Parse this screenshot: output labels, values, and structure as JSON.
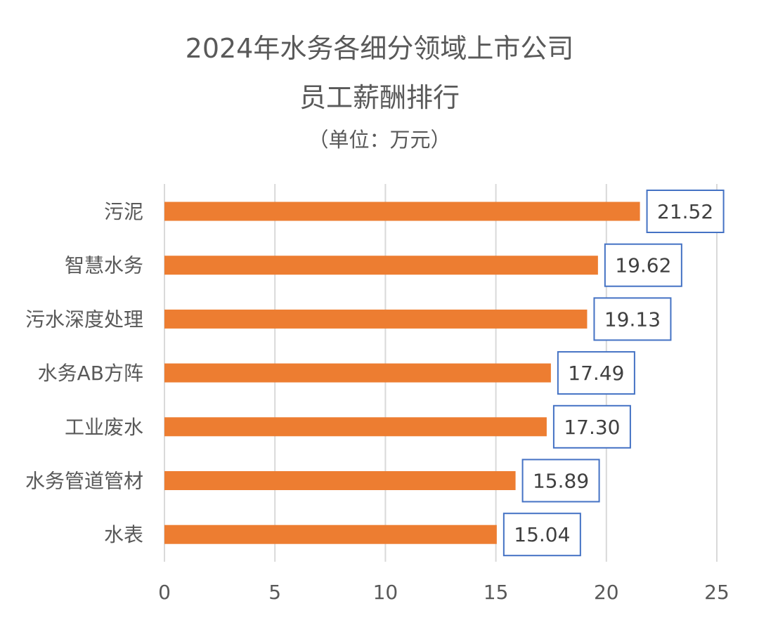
{
  "chart_data": {
    "type": "bar",
    "orientation": "horizontal",
    "title_line1": "2024年水务各细分领域上市公司",
    "title_line2": "员工薪酬排行",
    "subtitle": "（单位：万元）",
    "categories": [
      "污泥",
      "智慧水务",
      "污水深度处理",
      "水务AB方阵",
      "工业废水",
      "水务管道管材",
      "水表"
    ],
    "values": [
      21.52,
      19.62,
      19.13,
      17.49,
      17.3,
      15.89,
      15.04
    ],
    "value_labels": [
      "21.52",
      "19.62",
      "19.13",
      "17.49",
      "17.30",
      "15.89",
      "15.04"
    ],
    "xlim": [
      0,
      25
    ],
    "xticks": [
      0,
      5,
      10,
      15,
      20,
      25
    ],
    "xtick_labels": [
      "0",
      "5",
      "10",
      "15",
      "20",
      "25"
    ],
    "grid": "vertical",
    "legend": "none",
    "colors": {
      "bar": "#ED7D31",
      "label_border": "#4472C4",
      "grid": "#D9D9D9",
      "text": "#595959",
      "label_text": "#404040"
    }
  }
}
